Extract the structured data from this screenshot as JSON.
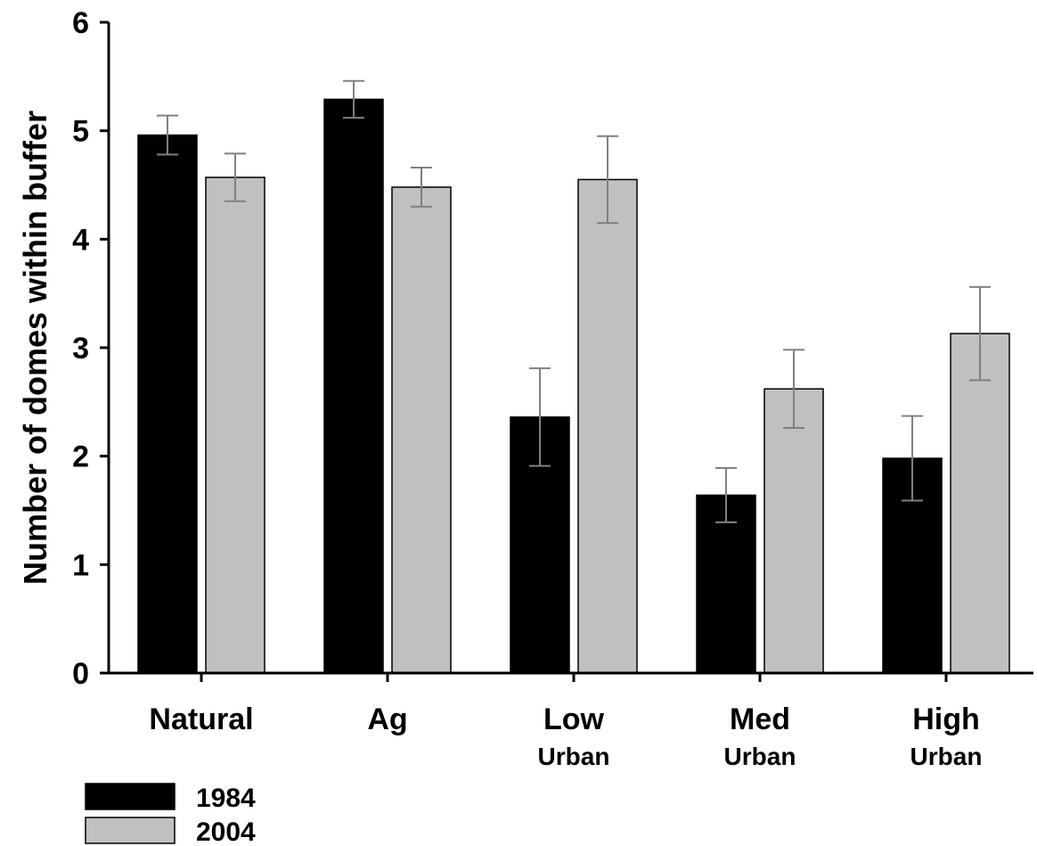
{
  "chart_data": {
    "type": "bar",
    "ylabel": "Number of domes within buffer",
    "xlabel": "",
    "ylim": [
      0,
      6
    ],
    "yticks": [
      "0",
      "1",
      "2",
      "3",
      "4",
      "5",
      "6"
    ],
    "categories": [
      {
        "label": "Natural",
        "sublabel": ""
      },
      {
        "label": "Ag",
        "sublabel": ""
      },
      {
        "label": "Low",
        "sublabel": "Urban"
      },
      {
        "label": "Med",
        "sublabel": "Urban"
      },
      {
        "label": "High",
        "sublabel": "Urban"
      }
    ],
    "series": [
      {
        "name": "1984",
        "color": "#000000",
        "values": [
          4.96,
          5.29,
          2.36,
          1.64,
          1.98
        ],
        "error": [
          0.18,
          0.17,
          0.45,
          0.25,
          0.39
        ]
      },
      {
        "name": "2004",
        "color": "#c0c0c0",
        "values": [
          4.57,
          4.48,
          4.55,
          2.62,
          3.13
        ],
        "error": [
          0.22,
          0.18,
          0.4,
          0.36,
          0.43
        ]
      }
    ],
    "grid": false,
    "legend_position": "bottom-left",
    "error_bar_color": "#808080"
  }
}
